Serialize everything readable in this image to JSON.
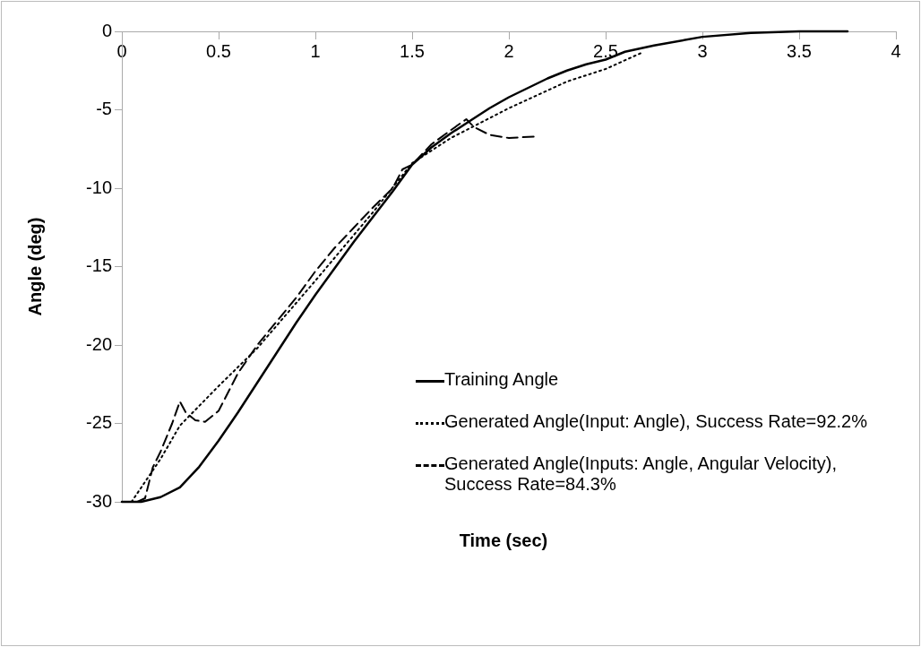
{
  "chart_data": {
    "type": "line",
    "xlabel": "Time (sec)",
    "ylabel": "Angle (deg)",
    "xlim": [
      0,
      4
    ],
    "xticks": [
      0,
      0.5,
      1,
      1.5,
      2,
      2.5,
      3,
      3.5,
      4
    ],
    "ylim": [
      -30,
      0
    ],
    "yticks": [
      -30,
      -25,
      -20,
      -15,
      -10,
      -5,
      0
    ],
    "grid": false,
    "legend": "right",
    "marker": "none",
    "series": [
      {
        "name": "Training Angle",
        "color": "#000000",
        "line_style": "solid",
        "x": [
          0,
          0.1,
          0.2,
          0.3,
          0.4,
          0.5,
          0.6,
          0.7,
          0.8,
          0.9,
          1.0,
          1.1,
          1.2,
          1.3,
          1.4,
          1.5,
          1.6,
          1.7,
          1.8,
          1.9,
          2.0,
          2.1,
          2.2,
          2.3,
          2.4,
          2.5,
          2.6,
          2.75,
          3.0,
          3.25,
          3.5,
          3.75
        ],
        "values": [
          -30,
          -30,
          -29.7,
          -29.08,
          -27.76,
          -26.1,
          -24.3,
          -22.4,
          -20.5,
          -18.6,
          -16.8,
          -15.1,
          -13.4,
          -11.8,
          -10.2,
          -8.5,
          -7.4,
          -6.5,
          -5.7,
          -4.9,
          -4.2,
          -3.6,
          -3.0,
          -2.5,
          -2.1,
          -1.8,
          -1.3,
          -0.9,
          -0.35,
          -0.1,
          0,
          0
        ]
      },
      {
        "name": "Generated Angle(Input: Angle), Success Rate=92.2%",
        "color": "#000000",
        "line_style": "dotted",
        "x": [
          0.05,
          0.2,
          0.3,
          0.5,
          0.7,
          1.0,
          1.3,
          1.5,
          1.7,
          2.0,
          2.3,
          2.5,
          2.68
        ],
        "values": [
          -30,
          -27.27,
          -25.14,
          -22.62,
          -20.2,
          -15.9,
          -11.5,
          -8.4,
          -6.8,
          -4.9,
          -3.2,
          -2.4,
          -1.4
        ]
      },
      {
        "name": "Generated Angle(Inputs: Angle, Angular Velocity), Success Rate=84.3%",
        "color": "#000000",
        "line_style": "dashed",
        "x": [
          0.08,
          0.12,
          0.16,
          0.2,
          0.26,
          0.3,
          0.33,
          0.38,
          0.43,
          0.5,
          0.55,
          0.6,
          0.7,
          0.8,
          0.9,
          1.0,
          1.1,
          1.2,
          1.3,
          1.4,
          1.45,
          1.5,
          1.6,
          1.7,
          1.78,
          1.82,
          1.9,
          2.0,
          2.14
        ],
        "values": [
          -30,
          -29.77,
          -27.8,
          -26.8,
          -25,
          -23.6,
          -24.3,
          -24.8,
          -24.9,
          -24.2,
          -23,
          -21.8,
          -20,
          -18.5,
          -17,
          -15.3,
          -13.8,
          -12.5,
          -11.2,
          -10,
          -8.8,
          -8.5,
          -7.2,
          -6.3,
          -5.6,
          -6.1,
          -6.6,
          -6.8,
          -6.7
        ]
      }
    ]
  }
}
